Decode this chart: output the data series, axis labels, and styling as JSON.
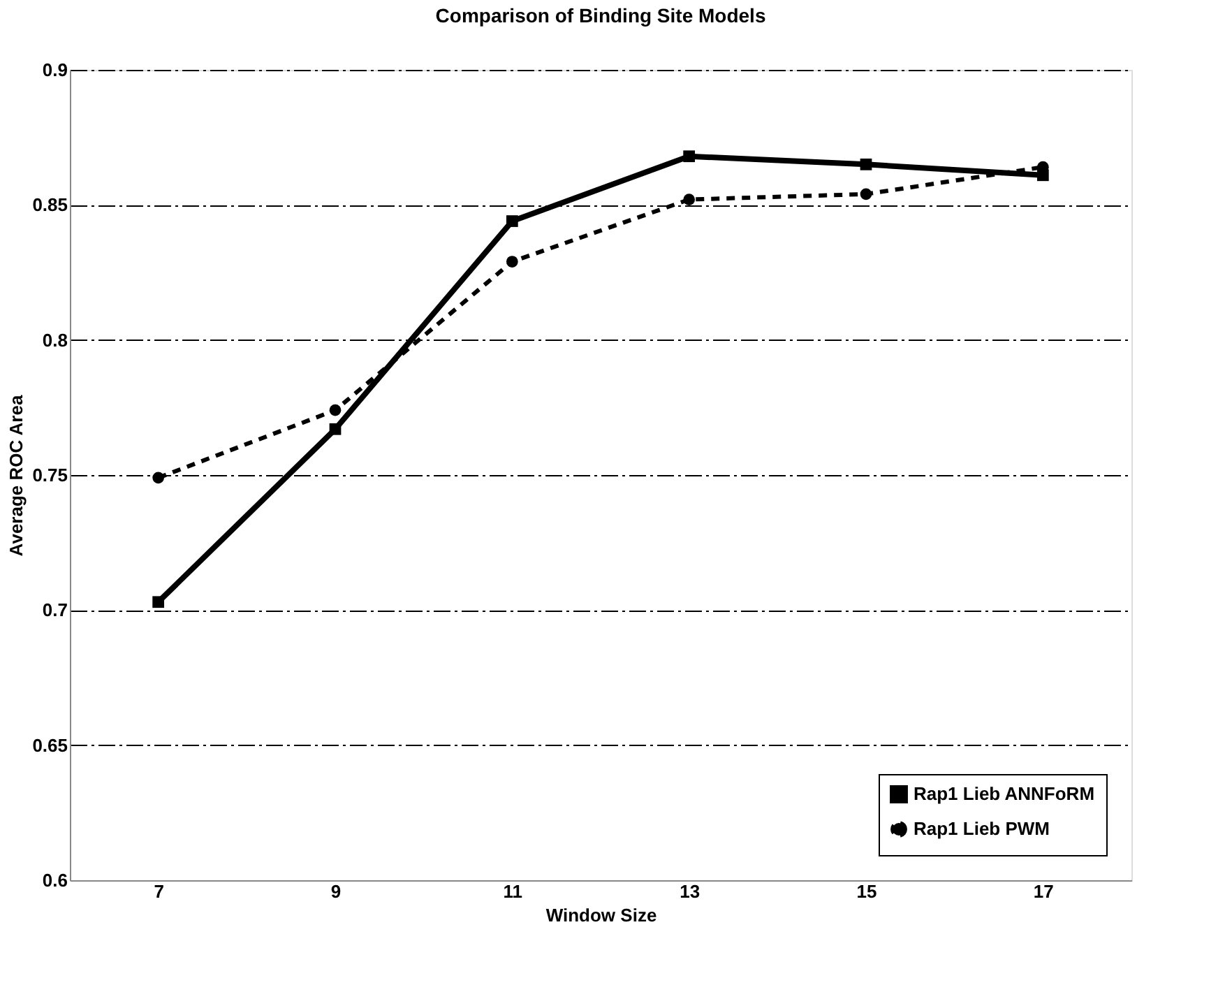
{
  "chart_data": {
    "type": "line",
    "title": "Comparison of Binding Site Models",
    "xlabel": "Window Size",
    "ylabel": "Average ROC Area",
    "categories": [
      "7",
      "9",
      "11",
      "13",
      "15",
      "17"
    ],
    "series": [
      {
        "name": "Rap1 Lieb ANNFoRM",
        "color": "#000000",
        "marker": "square",
        "line_style": "solid",
        "values": [
          0.703,
          0.767,
          0.844,
          0.868,
          0.865,
          0.861
        ]
      },
      {
        "name": "Rap1 Lieb PWM",
        "color": "#000000",
        "marker": "circle",
        "line_style": "dashed",
        "values": [
          0.749,
          0.774,
          0.829,
          0.852,
          0.854,
          0.864
        ]
      }
    ],
    "ylim": [
      0.6,
      0.9
    ],
    "yticks": [
      0.6,
      0.65,
      0.7,
      0.75,
      0.8,
      0.85,
      0.9
    ],
    "grid": "y",
    "legend": "bottom right"
  }
}
